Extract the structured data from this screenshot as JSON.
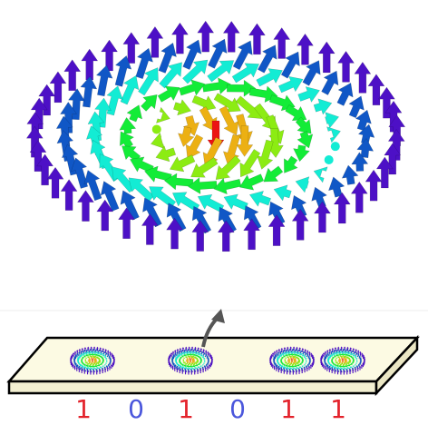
{
  "bits": [
    "1",
    "0",
    "1",
    "0",
    "1",
    "1"
  ]
}
